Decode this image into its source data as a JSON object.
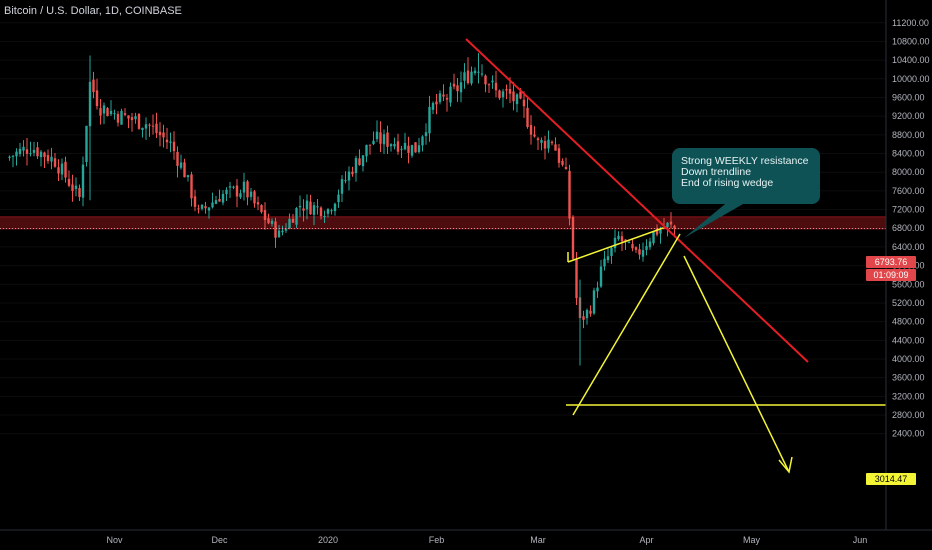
{
  "chart_title": "Bitcoin / U.S. Dollar, 1D, COINBASE",
  "callout": {
    "lines": [
      "Strong WEEKLY resistance",
      "Down trendline",
      "End of rising wedge"
    ]
  },
  "price_labels": {
    "last_price": "6793.76",
    "countdown": "01:09:09",
    "target": "3014.47"
  },
  "colors": {
    "background": "#000000",
    "bull": "#26a69a",
    "bear": "#ef5350",
    "trendline": "#e31e24",
    "wedge": "#f4f436",
    "callout_bg": "#0e5256"
  },
  "chart_data": {
    "type": "candlestick",
    "title": "Bitcoin / U.S. Dollar, 1D, COINBASE",
    "ylim": [
      2200,
      11400
    ],
    "y_ticks": [
      11200,
      10800,
      10400,
      10000,
      9600,
      9200,
      8800,
      8400,
      8000,
      7600,
      7200,
      6800,
      6400,
      6000,
      5600,
      5200,
      4800,
      4400,
      4000,
      3600,
      3200,
      2800,
      2400
    ],
    "y_tick_labels": [
      "11200.00",
      "10800.00",
      "10400.00",
      "10000.00",
      "9600.00",
      "9200.00",
      "8800.00",
      "8400.00",
      "8000.00",
      "7600.00",
      "7200.00",
      "6800.00",
      "6400.00",
      "6000.00",
      "5600.00",
      "5200.00",
      "4800.00",
      "4400.00",
      "4000.00",
      "3600.00",
      "3200.00",
      "2800.00",
      "2400.00"
    ],
    "x_ticks": [
      "Nov",
      "Dec",
      "2020",
      "Feb",
      "Mar",
      "Apr",
      "May",
      "Jun"
    ],
    "last_price": 6793.76,
    "resistance_zone": [
      6850,
      6980
    ],
    "target_level": 3014.47,
    "close_path": [
      [
        "Oct 1",
        8300
      ],
      [
        "Oct 8",
        8550
      ],
      [
        "Oct 15",
        8250
      ],
      [
        "Oct 22",
        7450
      ],
      [
        "Oct 25",
        9900
      ],
      [
        "Oct 28",
        9400
      ],
      [
        "Nov 3",
        9200
      ],
      [
        "Nov 10",
        9050
      ],
      [
        "Nov 17",
        8600
      ],
      [
        "Nov 21",
        8000
      ],
      [
        "Nov 25",
        7100
      ],
      [
        "Dec 1",
        7500
      ],
      [
        "Dec 8",
        7650
      ],
      [
        "Dec 12",
        7200
      ],
      [
        "Dec 18",
        6650
      ],
      [
        "Dec 24",
        7300
      ],
      [
        "Jan 1",
        7200
      ],
      [
        "Jan 8",
        8100
      ],
      [
        "Jan 14",
        8700
      ],
      [
        "Jan 20",
        8650
      ],
      [
        "Jan 26",
        8500
      ],
      [
        "Jan 31",
        9400
      ],
      [
        "Feb 6",
        9700
      ],
      [
        "Feb 10",
        10100
      ],
      [
        "Feb 13",
        10300
      ],
      [
        "Feb 18",
        9700
      ],
      [
        "Feb 22",
        9650
      ],
      [
        "Feb 26",
        9300
      ],
      [
        "Mar 1",
        8600
      ],
      [
        "Mar 5",
        8700
      ],
      [
        "Mar 9",
        7900
      ],
      [
        "Mar 12",
        5300
      ],
      [
        "Mar 13",
        4800
      ],
      [
        "Mar 16",
        5100
      ],
      [
        "Mar 19",
        5900
      ],
      [
        "Mar 24",
        6600
      ],
      [
        "Mar 29",
        6200
      ],
      [
        "Apr 3",
        6700
      ],
      [
        "Apr 7",
        6850
      ],
      [
        "Apr 9",
        6794
      ]
    ]
  }
}
